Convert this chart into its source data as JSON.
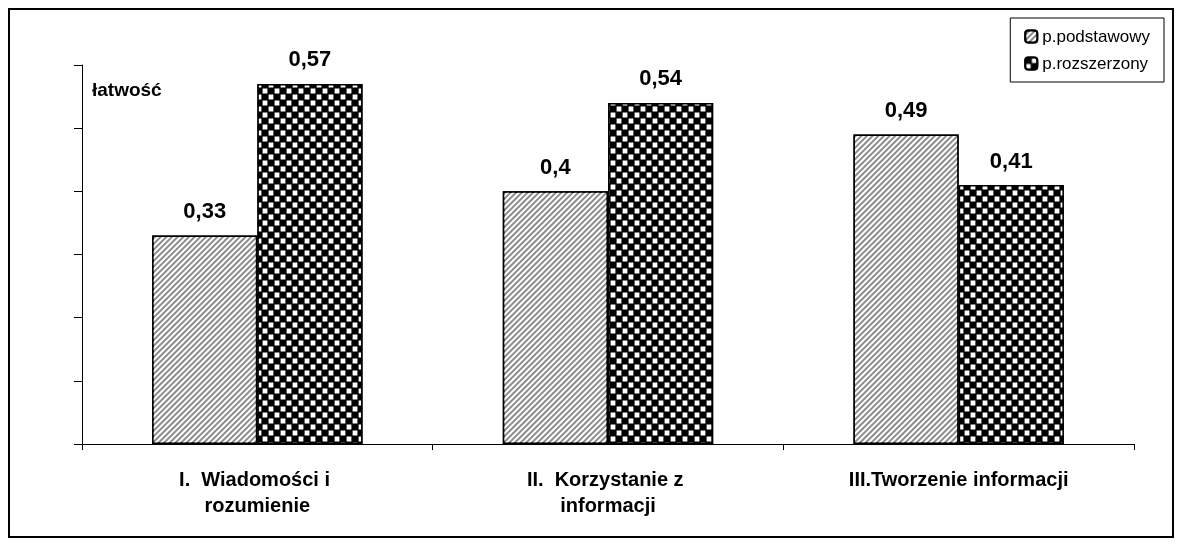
{
  "chart_data": {
    "type": "bar",
    "ylabel": "łatwość",
    "categories": [
      "I.  Wiadomości i rozumienie",
      "II.  Korzystanie z informacji",
      "III.Tworzenie informacji"
    ],
    "series": [
      {
        "name": "p.podstawowy",
        "color": "#8c8c8c",
        "values": [
          0.33,
          0.4,
          0.49
        ],
        "value_labels": [
          "0,33",
          "0,4",
          "0,49"
        ]
      },
      {
        "name": "p.rozszerzony",
        "color": "#000000",
        "values": [
          0.57,
          0.54,
          0.41
        ],
        "value_labels": [
          "0,57",
          "0,54",
          "0,41"
        ]
      }
    ],
    "ylim": [
      0,
      0.6
    ],
    "yticks": [
      {
        "value": 0,
        "label": null
      },
      {
        "value": 0.1,
        "label": null
      },
      {
        "value": 0.2,
        "label": null
      },
      {
        "value": 0.3,
        "label": null
      },
      {
        "value": 0.4,
        "label": null
      },
      {
        "value": 0.5,
        "label": null
      },
      {
        "value": 0.6,
        "label": null
      }
    ],
    "tick_labels": "x",
    "grid": false,
    "legend": "top right"
  }
}
